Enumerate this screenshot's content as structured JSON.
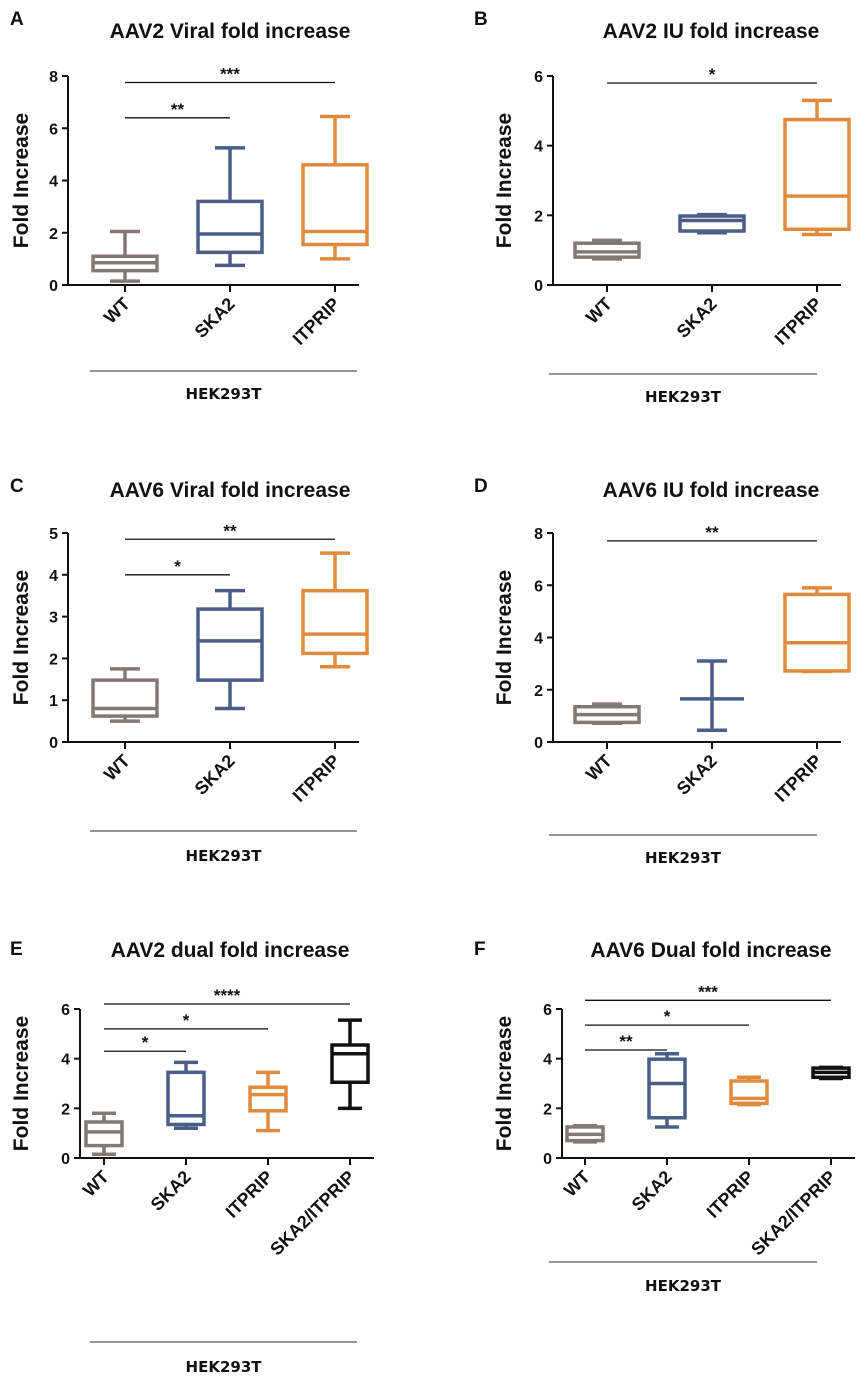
{
  "chart_data": [
    {
      "panel": "A",
      "type": "box",
      "title": "AAV2 Viral fold increase",
      "ylabel": "Fold Increase",
      "ylim": [
        0,
        8
      ],
      "yticks": [
        0,
        2,
        4,
        6,
        8
      ],
      "group_label": "HEK293T",
      "boxes": [
        {
          "category": "WT",
          "color": "#847876",
          "min": 0.15,
          "q1": 0.55,
          "median": 0.85,
          "q3": 1.1,
          "max": 2.05
        },
        {
          "category": "SKA2",
          "color": "#4a5e88",
          "min": 0.75,
          "q1": 1.25,
          "median": 1.95,
          "q3": 3.2,
          "max": 5.25
        },
        {
          "category": "ITPRIP",
          "color": "#e08a3e",
          "min": 1.0,
          "q1": 1.55,
          "median": 2.05,
          "q3": 4.6,
          "max": 6.45
        }
      ],
      "significance": [
        {
          "from": "WT",
          "to": "SKA2",
          "label": "**",
          "level": 6.4
        },
        {
          "from": "WT",
          "to": "ITPRIP",
          "label": "***",
          "level": 7.75
        }
      ]
    },
    {
      "panel": "B",
      "type": "box",
      "title": "AAV2 IU fold increase",
      "ylabel": "Fold Increase",
      "ylim": [
        0,
        6
      ],
      "yticks": [
        0,
        2,
        4,
        6
      ],
      "group_label": "HEK293T",
      "boxes": [
        {
          "category": "WT",
          "color": "#847876",
          "min": 0.75,
          "q1": 0.8,
          "median": 0.95,
          "q3": 1.2,
          "max": 1.28
        },
        {
          "category": "SKA2",
          "color": "#4a5e88",
          "min": 1.5,
          "q1": 1.55,
          "median": 1.85,
          "q3": 1.98,
          "max": 2.02
        },
        {
          "category": "ITPRIP",
          "color": "#e08a3e",
          "min": 1.45,
          "q1": 1.6,
          "median": 2.55,
          "q3": 4.75,
          "max": 5.3
        }
      ],
      "significance": [
        {
          "from": "WT",
          "to": "ITPRIP",
          "label": "*",
          "level": 5.8
        }
      ]
    },
    {
      "panel": "C",
      "type": "box",
      "title": "AAV6 Viral fold increase",
      "ylabel": "Fold Increase",
      "ylim": [
        0,
        5
      ],
      "yticks": [
        0,
        1,
        2,
        3,
        4,
        5
      ],
      "group_label": "HEK293T",
      "boxes": [
        {
          "category": "WT",
          "color": "#847876",
          "min": 0.5,
          "q1": 0.62,
          "median": 0.8,
          "q3": 1.48,
          "max": 1.75
        },
        {
          "category": "SKA2",
          "color": "#4a5e88",
          "min": 0.8,
          "q1": 1.48,
          "median": 2.42,
          "q3": 3.18,
          "max": 3.62
        },
        {
          "category": "ITPRIP",
          "color": "#e08a3e",
          "min": 1.8,
          "q1": 2.12,
          "median": 2.58,
          "q3": 3.62,
          "max": 4.52
        }
      ],
      "significance": [
        {
          "from": "WT",
          "to": "SKA2",
          "label": "*",
          "level": 4.0
        },
        {
          "from": "WT",
          "to": "ITPRIP",
          "label": "**",
          "level": 4.85
        }
      ]
    },
    {
      "panel": "D",
      "type": "box",
      "title": "AAV6 IU fold increase",
      "ylabel": "Fold Increase",
      "ylim": [
        0,
        8
      ],
      "yticks": [
        0,
        2,
        4,
        6,
        8
      ],
      "group_label": "HEK293T",
      "boxes": [
        {
          "category": "WT",
          "color": "#847876",
          "min": 0.72,
          "q1": 0.75,
          "median": 1.05,
          "q3": 1.35,
          "max": 1.45
        },
        {
          "category": "SKA2",
          "color": "#4a5e88",
          "min": 0.45,
          "q1": 1.65,
          "median": 1.65,
          "q3": 1.65,
          "max": 3.1
        },
        {
          "category": "ITPRIP",
          "color": "#e08a3e",
          "min": 2.7,
          "q1": 2.72,
          "median": 3.8,
          "q3": 5.65,
          "max": 5.9
        }
      ],
      "significance": [
        {
          "from": "WT",
          "to": "ITPRIP",
          "label": "**",
          "level": 7.7
        }
      ]
    },
    {
      "panel": "E",
      "type": "box",
      "title": "AAV2 dual fold increase",
      "ylabel": "Fold Increase",
      "ylim": [
        0,
        6
      ],
      "yticks": [
        0,
        2,
        4,
        6
      ],
      "group_label": "HEK293T",
      "boxes": [
        {
          "category": "WT",
          "color": "#847876",
          "min": 0.15,
          "q1": 0.5,
          "median": 1.05,
          "q3": 1.45,
          "max": 1.8
        },
        {
          "category": "SKA2",
          "color": "#4a5e88",
          "min": 1.2,
          "q1": 1.35,
          "median": 1.7,
          "q3": 3.45,
          "max": 3.85
        },
        {
          "category": "ITPRIP",
          "color": "#e08a3e",
          "min": 1.1,
          "q1": 1.9,
          "median": 2.55,
          "q3": 2.85,
          "max": 3.45
        },
        {
          "category": "SKA2/ITPRIP",
          "color": "#111111",
          "min": 2.0,
          "q1": 3.05,
          "median": 4.2,
          "q3": 4.55,
          "max": 5.55
        }
      ],
      "significance": [
        {
          "from": "WT",
          "to": "SKA2",
          "label": "*",
          "level": 4.3
        },
        {
          "from": "WT",
          "to": "ITPRIP",
          "label": "*",
          "level": 5.2
        },
        {
          "from": "WT",
          "to": "SKA2/ITPRIP",
          "label": "****",
          "level": 6.2
        }
      ]
    },
    {
      "panel": "F",
      "type": "box",
      "title": "AAV6 Dual fold increase",
      "ylabel": "Fold Increase",
      "ylim": [
        0,
        6
      ],
      "yticks": [
        0,
        2,
        4,
        6
      ],
      "group_label": "HEK293T",
      "boxes": [
        {
          "category": "WT",
          "color": "#847876",
          "min": 0.65,
          "q1": 0.7,
          "median": 0.95,
          "q3": 1.25,
          "max": 1.3
        },
        {
          "category": "SKA2",
          "color": "#4a5e88",
          "min": 1.25,
          "q1": 1.62,
          "median": 3.0,
          "q3": 3.98,
          "max": 4.2
        },
        {
          "category": "ITPRIP",
          "color": "#e08a3e",
          "min": 2.15,
          "q1": 2.2,
          "median": 2.4,
          "q3": 3.1,
          "max": 3.25
        },
        {
          "category": "SKA2/ITPRIP",
          "color": "#111111",
          "min": 3.2,
          "q1": 3.25,
          "median": 3.45,
          "q3": 3.62,
          "max": 3.65
        }
      ],
      "significance": [
        {
          "from": "WT",
          "to": "SKA2",
          "label": "**",
          "level": 4.35
        },
        {
          "from": "WT",
          "to": "ITPRIP",
          "label": "*",
          "level": 5.35
        },
        {
          "from": "WT",
          "to": "SKA2/ITPRIP",
          "label": "***",
          "level": 6.35
        }
      ]
    }
  ]
}
